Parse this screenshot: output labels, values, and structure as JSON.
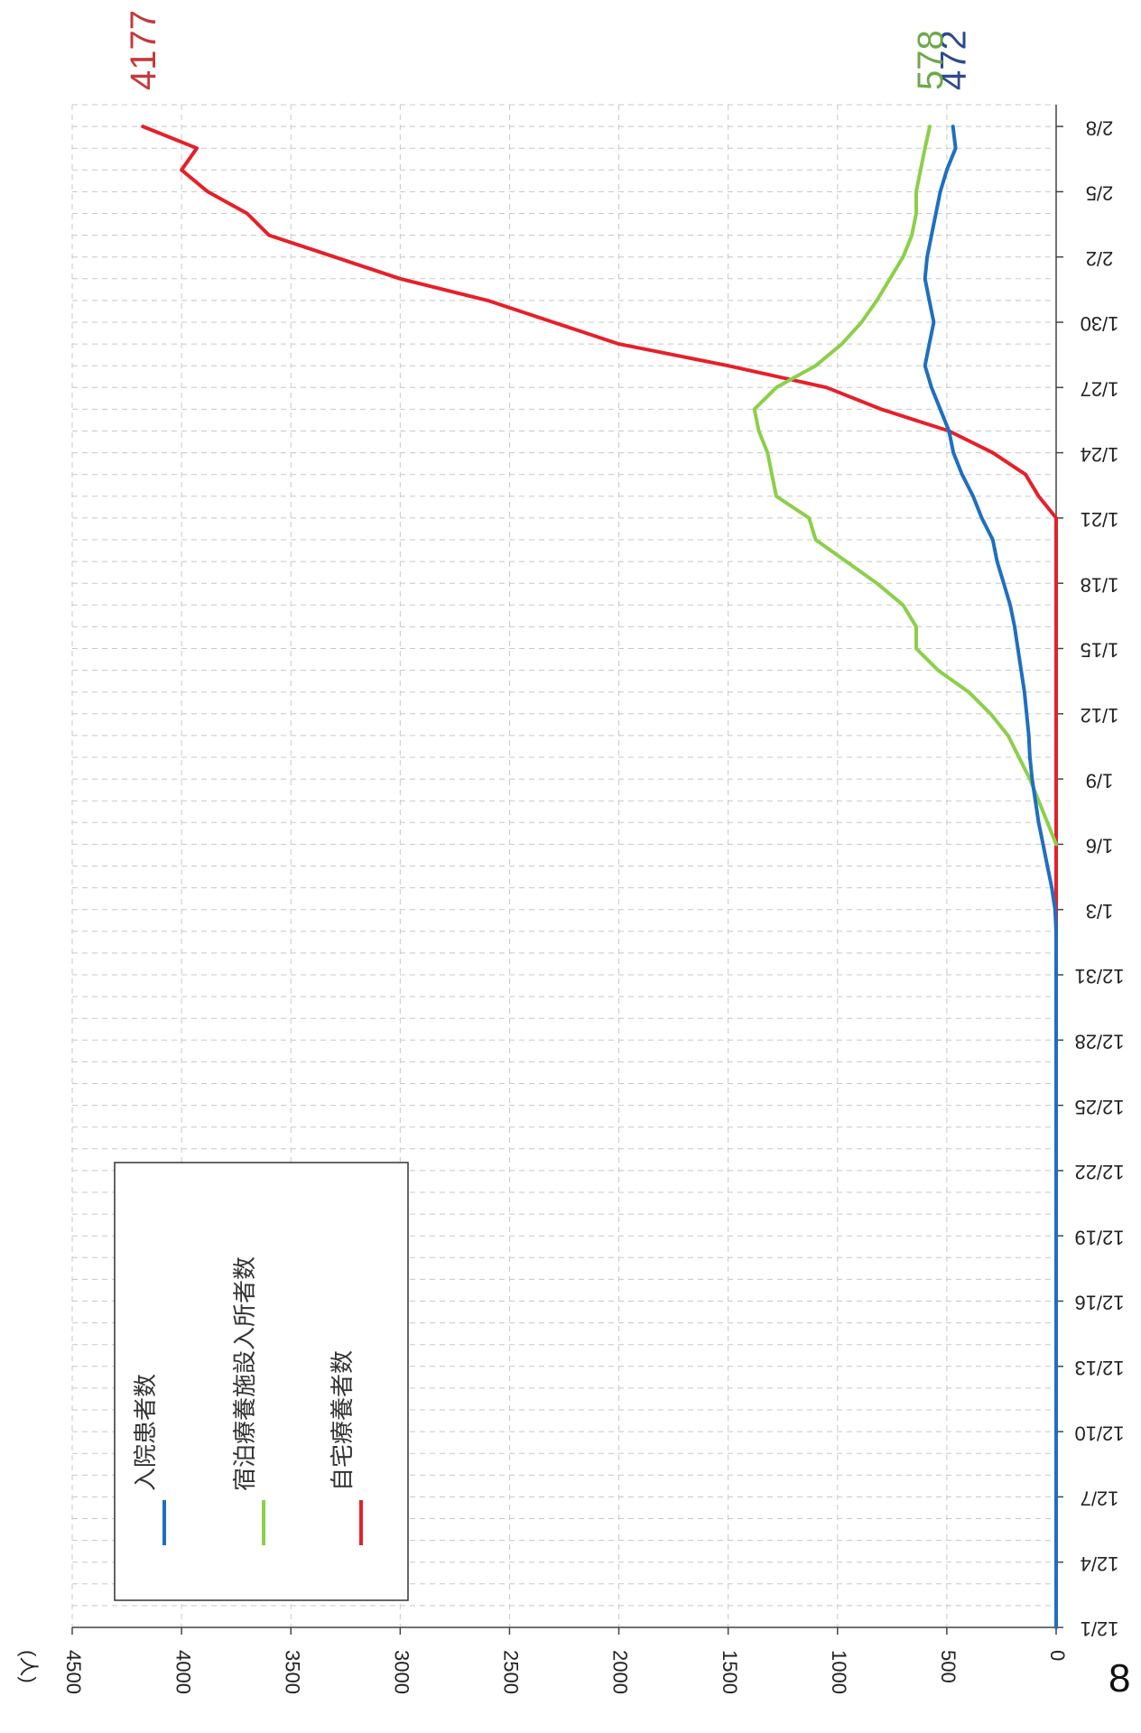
{
  "page": {
    "number": "8"
  },
  "chart_data": {
    "type": "line",
    "orientation": "rotated 90° clockwise",
    "title": "",
    "ylabel": "(人)",
    "ylim": [
      0,
      4500
    ],
    "yticks": [
      0,
      500,
      1000,
      1500,
      2000,
      2500,
      3000,
      3500,
      4000,
      4500
    ],
    "ytick_labels": [
      "0",
      "500",
      "1000",
      "1500",
      "2000",
      "2500",
      "3000",
      "3500",
      "4000",
      "4500"
    ],
    "x_start": "12/1",
    "x_days": 70,
    "xtick_labels": [
      "12/1",
      "12/4",
      "12/7",
      "12/10",
      "12/13",
      "12/16",
      "12/19",
      "12/22",
      "12/25",
      "12/28",
      "12/31",
      "1/3",
      "1/6",
      "1/9",
      "1/12",
      "1/15",
      "1/18",
      "1/21",
      "1/24",
      "1/27",
      "1/30",
      "2/2",
      "2/5",
      "2/8"
    ],
    "grid": true,
    "legend": {
      "position": "upper-left"
    },
    "colors": {
      "hospital": "#1f6fc0",
      "hotel": "#8ccf4a",
      "home": "#e5202a",
      "hotel_label": "#6fa848",
      "hospital_label": "#2e4a8a",
      "home_label": "#c43a3a"
    },
    "series": [
      {
        "key": "hospital",
        "name": "入院患者数",
        "end_label": "472",
        "points": [
          [
            "12/1",
            0
          ],
          [
            "1/2",
            0
          ],
          [
            "1/3",
            5
          ],
          [
            "1/4",
            20
          ],
          [
            "1/5",
            40
          ],
          [
            "1/6",
            60
          ],
          [
            "1/7",
            80
          ],
          [
            "1/8",
            95
          ],
          [
            "1/9",
            110
          ],
          [
            "1/10",
            120
          ],
          [
            "1/11",
            125
          ],
          [
            "1/12",
            135
          ],
          [
            "1/13",
            145
          ],
          [
            "1/14",
            160
          ],
          [
            "1/15",
            175
          ],
          [
            "1/16",
            190
          ],
          [
            "1/17",
            210
          ],
          [
            "1/18",
            240
          ],
          [
            "1/19",
            270
          ],
          [
            "1/20",
            290
          ],
          [
            "1/21",
            340
          ],
          [
            "1/22",
            380
          ],
          [
            "1/23",
            430
          ],
          [
            "1/24",
            470
          ],
          [
            "1/25",
            490
          ],
          [
            "1/26",
            530
          ],
          [
            "1/27",
            570
          ],
          [
            "1/28",
            600
          ],
          [
            "1/29",
            580
          ],
          [
            "1/30",
            560
          ],
          [
            "1/31",
            580
          ],
          [
            "2/1",
            600
          ],
          [
            "2/2",
            590
          ],
          [
            "2/3",
            570
          ],
          [
            "2/4",
            550
          ],
          [
            "2/5",
            530
          ],
          [
            "2/6",
            500
          ],
          [
            "2/7",
            460
          ],
          [
            "2/8",
            472
          ]
        ]
      },
      {
        "key": "hotel",
        "name": "宿泊療養施設入所者数",
        "end_label": "578",
        "points": [
          [
            "1/6",
            0
          ],
          [
            "1/7",
            40
          ],
          [
            "1/8",
            80
          ],
          [
            "1/9",
            120
          ],
          [
            "1/10",
            170
          ],
          [
            "1/11",
            220
          ],
          [
            "1/12",
            300
          ],
          [
            "1/13",
            400
          ],
          [
            "1/14",
            540
          ],
          [
            "1/15",
            640
          ],
          [
            "1/16",
            640
          ],
          [
            "1/17",
            700
          ],
          [
            "1/18",
            820
          ],
          [
            "1/19",
            960
          ],
          [
            "1/20",
            1100
          ],
          [
            "1/21",
            1130
          ],
          [
            "1/22",
            1280
          ],
          [
            "1/23",
            1300
          ],
          [
            "1/24",
            1320
          ],
          [
            "1/25",
            1360
          ],
          [
            "1/26",
            1380
          ],
          [
            "1/27",
            1280
          ],
          [
            "1/28",
            1100
          ],
          [
            "1/29",
            980
          ],
          [
            "1/30",
            890
          ],
          [
            "1/31",
            820
          ],
          [
            "2/1",
            760
          ],
          [
            "2/2",
            700
          ],
          [
            "2/3",
            660
          ],
          [
            "2/4",
            640
          ],
          [
            "2/5",
            640
          ],
          [
            "2/6",
            620
          ],
          [
            "2/7",
            600
          ],
          [
            "2/8",
            578
          ]
        ]
      },
      {
        "key": "home",
        "name": "自宅療養者数",
        "end_label": "4177",
        "points": [
          [
            "12/1",
            0
          ],
          [
            "1/21",
            0
          ],
          [
            "1/22",
            80
          ],
          [
            "1/23",
            140
          ],
          [
            "1/24",
            290
          ],
          [
            "1/25",
            490
          ],
          [
            "1/26",
            800
          ],
          [
            "1/27",
            1050
          ],
          [
            "1/28",
            1500
          ],
          [
            "1/29",
            2000
          ],
          [
            "1/30",
            2300
          ],
          [
            "1/31",
            2600
          ],
          [
            "2/1",
            3000
          ],
          [
            "2/2",
            3300
          ],
          [
            "2/3",
            3600
          ],
          [
            "2/4",
            3700
          ],
          [
            "2/5",
            3880
          ],
          [
            "2/6",
            4000
          ],
          [
            "2/7",
            3930
          ],
          [
            "2/8",
            4177
          ]
        ]
      }
    ]
  }
}
